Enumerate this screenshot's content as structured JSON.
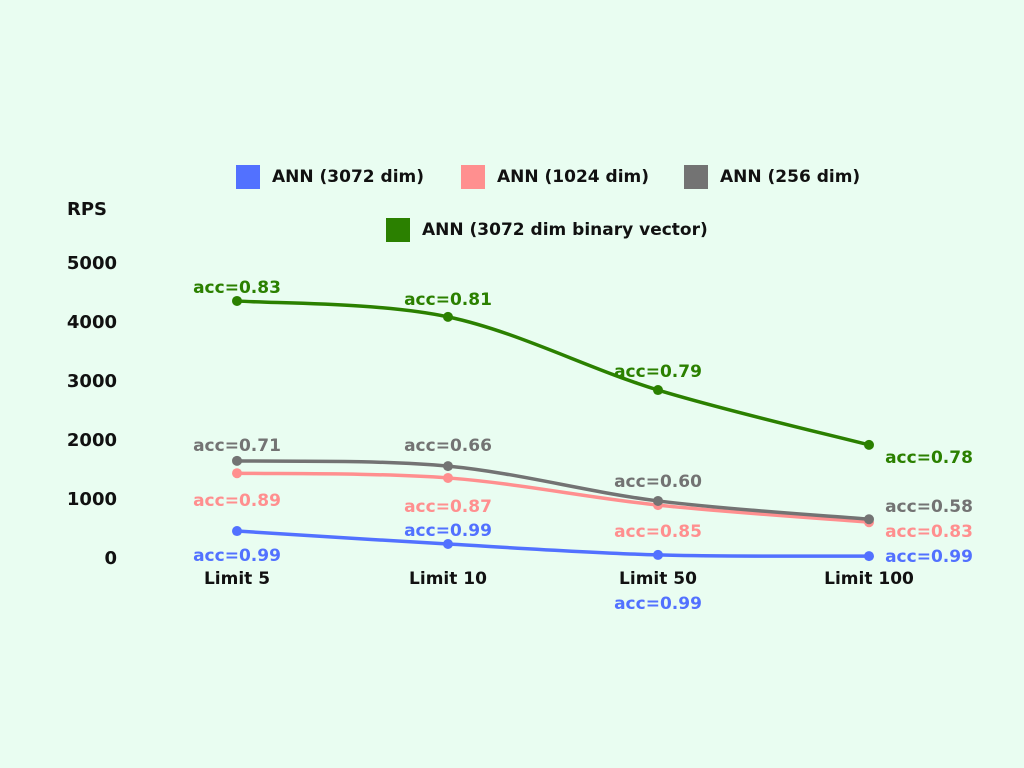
{
  "chart_data": {
    "type": "line",
    "ylabel": "RPS",
    "ylim": [
      0,
      5000
    ],
    "yticks": [
      0,
      1000,
      2000,
      3000,
      4000,
      5000
    ],
    "categories": [
      "Limit 5",
      "Limit 10",
      "Limit 50",
      "Limit 100"
    ],
    "legend_position": "top",
    "grid": false,
    "series": [
      {
        "name": "ANN (3072 dim)",
        "color": "#5271ff",
        "values": [
          440,
          220,
          35,
          15
        ],
        "labels": [
          "acc=0.99",
          "acc=0.99",
          "acc=0.99",
          "acc=0.99"
        ]
      },
      {
        "name": "ANN (1024 dim)",
        "color": "#ff8f8f",
        "values": [
          1420,
          1340,
          880,
          590
        ],
        "labels": [
          "acc=0.89",
          "acc=0.87",
          "acc=0.85",
          "acc=0.83"
        ]
      },
      {
        "name": "ANN (256 dim)",
        "color": "#737373",
        "values": [
          1630,
          1540,
          950,
          640
        ],
        "labels": [
          "acc=0.71",
          "acc=0.66",
          "acc=0.60",
          "acc=0.58"
        ]
      },
      {
        "name": "ANN (3072 dim binary vector)",
        "color": "#2b8000",
        "values": [
          4340,
          4070,
          2830,
          1900
        ],
        "labels": [
          "acc=0.83",
          "acc=0.81",
          "acc=0.79",
          "acc=0.78"
        ]
      }
    ]
  }
}
